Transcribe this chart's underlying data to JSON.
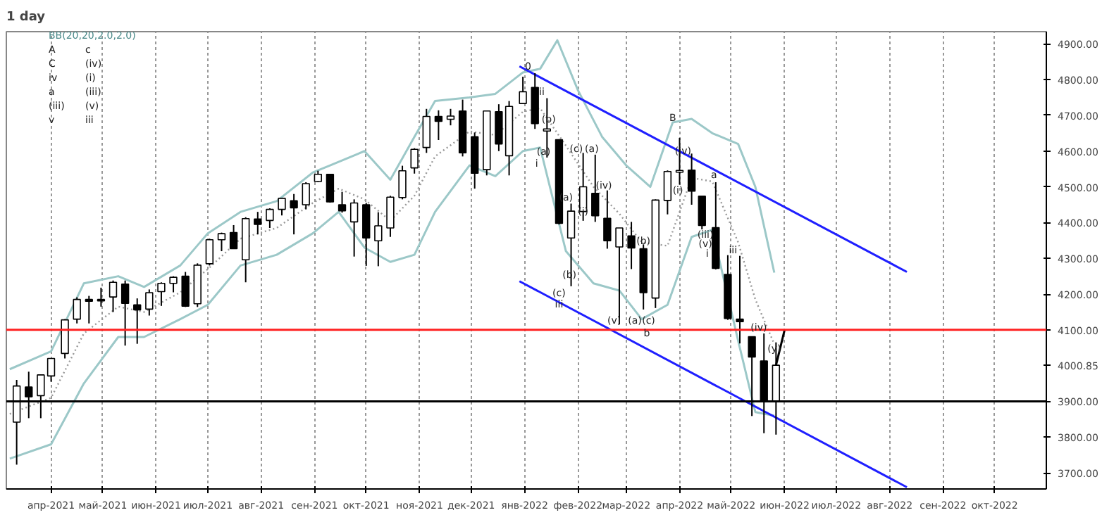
{
  "chart_data": {
    "type": "candlestick",
    "title": "1 day",
    "x": [
      "2021-03-12",
      "2021-03-19",
      "2021-03-26",
      "2021-04-01",
      "2021-04-09",
      "2021-04-16",
      "2021-04-23",
      "2021-04-30",
      "2021-05-07",
      "2021-05-14",
      "2021-05-21",
      "2021-05-28",
      "2021-06-04",
      "2021-06-11",
      "2021-06-18",
      "2021-06-25",
      "2021-07-02",
      "2021-07-09",
      "2021-07-16",
      "2021-07-23",
      "2021-07-30",
      "2021-08-06",
      "2021-08-13",
      "2021-08-20",
      "2021-08-27",
      "2021-09-03",
      "2021-09-10",
      "2021-09-17",
      "2021-09-24",
      "2021-10-01",
      "2021-10-08",
      "2021-10-15",
      "2021-10-22",
      "2021-10-29",
      "2021-11-05",
      "2021-11-12",
      "2021-11-19",
      "2021-11-26",
      "2021-12-03",
      "2021-12-10",
      "2021-12-17",
      "2021-12-23",
      "2021-12-31",
      "2022-01-07",
      "2022-01-14",
      "2022-01-21",
      "2022-01-28",
      "2022-02-04",
      "2022-02-11",
      "2022-02-18",
      "2022-02-25",
      "2022-03-04",
      "2022-03-11",
      "2022-03-18",
      "2022-03-25",
      "2022-04-01",
      "2022-04-08",
      "2022-04-14",
      "2022-04-22",
      "2022-04-29",
      "2022-05-06",
      "2022-05-13",
      "2022-05-20",
      "2022-05-27"
    ],
    "ohlc": [
      [
        3842,
        3960,
        3723,
        3943
      ],
      [
        3940,
        3983,
        3853,
        3913
      ],
      [
        3916,
        3975,
        3853,
        3974
      ],
      [
        3971,
        4020,
        3955,
        4020
      ],
      [
        4034,
        4130,
        4020,
        4128
      ],
      [
        4130,
        4191,
        4118,
        4185
      ],
      [
        4185,
        4195,
        4118,
        4180
      ],
      [
        4185,
        4218,
        4165,
        4181
      ],
      [
        4192,
        4238,
        4150,
        4233
      ],
      [
        4228,
        4238,
        4056,
        4174
      ],
      [
        4170,
        4188,
        4061,
        4156
      ],
      [
        4158,
        4213,
        4140,
        4204
      ],
      [
        4207,
        4233,
        4167,
        4230
      ],
      [
        4230,
        4250,
        4205,
        4247
      ],
      [
        4250,
        4262,
        4164,
        4166
      ],
      [
        4173,
        4286,
        4164,
        4281
      ],
      [
        4285,
        4355,
        4280,
        4352
      ],
      [
        4352,
        4372,
        4320,
        4369
      ],
      [
        4372,
        4393,
        4327,
        4327
      ],
      [
        4296,
        4415,
        4233,
        4411
      ],
      [
        4410,
        4430,
        4367,
        4395
      ],
      [
        4406,
        4440,
        4385,
        4437
      ],
      [
        4437,
        4469,
        4420,
        4468
      ],
      [
        4461,
        4480,
        4367,
        4441
      ],
      [
        4450,
        4513,
        4437,
        4509
      ],
      [
        4515,
        4545,
        4513,
        4535
      ],
      [
        4535,
        4536,
        4456,
        4458
      ],
      [
        4450,
        4486,
        4428,
        4433
      ],
      [
        4402,
        4465,
        4305,
        4455
      ],
      [
        4450,
        4455,
        4279,
        4357
      ],
      [
        4349,
        4429,
        4278,
        4391
      ],
      [
        4385,
        4475,
        4360,
        4471
      ],
      [
        4470,
        4559,
        4465,
        4545
      ],
      [
        4553,
        4608,
        4537,
        4605
      ],
      [
        4610,
        4718,
        4595,
        4697
      ],
      [
        4697,
        4714,
        4631,
        4683
      ],
      [
        4689,
        4718,
        4672,
        4698
      ],
      [
        4712,
        4744,
        4585,
        4595
      ],
      [
        4640,
        4652,
        4495,
        4538
      ],
      [
        4548,
        4713,
        4532,
        4712
      ],
      [
        4710,
        4731,
        4600,
        4620
      ],
      [
        4587,
        4740,
        4532,
        4725
      ],
      [
        4733,
        4808,
        4733,
        4766
      ],
      [
        4778,
        4818,
        4662,
        4677
      ],
      [
        4656,
        4748,
        4582,
        4662
      ],
      [
        4632,
        4632,
        4395,
        4398
      ],
      [
        4357,
        4453,
        4222,
        4432
      ],
      [
        4431,
        4595,
        4405,
        4500
      ],
      [
        4482,
        4590,
        4402,
        4419
      ],
      [
        4412,
        4490,
        4327,
        4349
      ],
      [
        4332,
        4385,
        4115,
        4385
      ],
      [
        4363,
        4402,
        4270,
        4329
      ],
      [
        4327,
        4339,
        4157,
        4204
      ],
      [
        4189,
        4465,
        4161,
        4463
      ],
      [
        4462,
        4546,
        4423,
        4543
      ],
      [
        4541,
        4637,
        4506,
        4546
      ],
      [
        4547,
        4593,
        4450,
        4488
      ],
      [
        4474,
        4475,
        4381,
        4392
      ],
      [
        4386,
        4513,
        4269,
        4272
      ],
      [
        4255,
        4309,
        4128,
        4132
      ],
      [
        4130,
        4307,
        4062,
        4123
      ],
      [
        4081,
        4081,
        3859,
        4024
      ],
      [
        4013,
        4090,
        3811,
        3901
      ],
      [
        3901,
        4065,
        3807,
        4001
      ]
    ],
    "series": [
      {
        "type": "line",
        "color": "#9cc8c8",
        "x": [
          "2021-03-08",
          "2021-04-01",
          "2021-04-20",
          "2021-05-10",
          "2021-05-25",
          "2021-06-15",
          "2021-07-01",
          "2021-07-20",
          "2021-08-10",
          "2021-08-31",
          "2021-09-10",
          "2021-09-30",
          "2021-10-15",
          "2021-10-29",
          "2021-11-10",
          "2021-11-30",
          "2021-12-15",
          "2021-12-31",
          "2022-01-10",
          "2022-01-20",
          "2022-02-01",
          "2022-02-15",
          "2022-03-01",
          "2022-03-15",
          "2022-03-28",
          "2022-04-08",
          "2022-04-20",
          "2022-05-05",
          "2022-05-15",
          "2022-05-26"
        ],
        "values": [
          3990,
          4040,
          4230,
          4250,
          4220,
          4280,
          4370,
          4430,
          4460,
          4540,
          4560,
          4600,
          4520,
          4640,
          4740,
          4750,
          4760,
          4820,
          4830,
          4910,
          4770,
          4640,
          4560,
          4500,
          4680,
          4690,
          4650,
          4620,
          4500,
          4260
        ]
      },
      {
        "type": "line",
        "color": "#9cc8c8",
        "x": [
          "2021-03-08",
          "2021-04-01",
          "2021-04-20",
          "2021-05-10",
          "2021-05-25",
          "2021-06-15",
          "2021-07-01",
          "2021-07-20",
          "2021-08-10",
          "2021-08-31",
          "2021-09-15",
          "2021-09-30",
          "2021-10-15",
          "2021-10-29",
          "2021-11-10",
          "2021-11-30",
          "2021-12-15",
          "2021-12-31",
          "2022-01-10",
          "2022-01-25",
          "2022-02-10",
          "2022-02-25",
          "2022-03-10",
          "2022-03-25",
          "2022-04-08",
          "2022-04-20",
          "2022-05-05",
          "2022-05-15",
          "2022-05-26"
        ],
        "values": [
          3740,
          3780,
          3950,
          4080,
          4080,
          4130,
          4170,
          4280,
          4310,
          4370,
          4430,
          4330,
          4290,
          4310,
          4430,
          4560,
          4530,
          4600,
          4610,
          4320,
          4230,
          4210,
          4130,
          4170,
          4360,
          4380,
          4070,
          3870,
          3860
        ]
      },
      {
        "type": "line",
        "color": "#999999",
        "line_style": "dotted",
        "x": [
          "2021-03-08",
          "2021-04-01",
          "2021-04-20",
          "2021-05-10",
          "2021-05-25",
          "2021-06-15",
          "2021-07-01",
          "2021-07-20",
          "2021-08-10",
          "2021-08-31",
          "2021-09-15",
          "2021-09-30",
          "2021-10-15",
          "2021-10-29",
          "2021-11-10",
          "2021-11-30",
          "2021-12-15",
          "2021-12-31",
          "2022-01-10",
          "2022-01-25",
          "2022-02-10",
          "2022-02-25",
          "2022-03-10",
          "2022-03-25",
          "2022-04-08",
          "2022-04-20",
          "2022-05-05",
          "2022-05-15",
          "2022-05-26"
        ],
        "values": [
          3865,
          3910,
          4090,
          4165,
          4150,
          4205,
          4270,
          4355,
          4385,
          4455,
          4495,
          4465,
          4405,
          4475,
          4585,
          4655,
          4645,
          4710,
          4720,
          4615,
          4500,
          4425,
          4345,
          4335,
          4525,
          4515,
          4345,
          4185,
          4060
        ]
      },
      {
        "type": "line",
        "color": "#1f1fff",
        "x": [
          "2021-12-29",
          "2022-08-11"
        ],
        "values": [
          4837,
          4262
        ]
      },
      {
        "type": "line",
        "color": "#1f1fff",
        "x": [
          "2021-12-29",
          "2022-08-11"
        ],
        "values": [
          4236,
          3660
        ]
      },
      {
        "type": "line",
        "color": "#000000",
        "x": [
          "2022-05-27",
          "2022-06-01"
        ],
        "values": [
          4001,
          4100
        ]
      }
    ],
    "ref_lines": [
      {
        "axis": "y",
        "value": 4100,
        "color": "#ff2020"
      },
      {
        "axis": "y",
        "value": 3900,
        "color": "#000000"
      }
    ],
    "xlim": [
      "2021-03-06",
      "2022-10-31"
    ],
    "ylim": [
      3655,
      4934
    ],
    "xticks": [
      {
        "value": "2021-04-01",
        "label": "апр-2021"
      },
      {
        "value": "2021-05-01",
        "label": "май-2021"
      },
      {
        "value": "2021-06-01",
        "label": "июн-2021"
      },
      {
        "value": "2021-07-01",
        "label": "июл-2021"
      },
      {
        "value": "2021-08-01",
        "label": "авг-2021"
      },
      {
        "value": "2021-09-01",
        "label": "сен-2021"
      },
      {
        "value": "2021-10-01",
        "label": "окт-2021"
      },
      {
        "value": "2021-11-01",
        "label": "ноя-2021"
      },
      {
        "value": "2021-12-01",
        "label": "дек-2021"
      },
      {
        "value": "2022-01-01",
        "label": "янв-2022"
      },
      {
        "value": "2022-02-01",
        "label": "фев-2022"
      },
      {
        "value": "2022-03-01",
        "label": "мар-2022"
      },
      {
        "value": "2022-04-01",
        "label": "апр-2022"
      },
      {
        "value": "2022-05-01",
        "label": "май-2022"
      },
      {
        "value": "2022-06-01",
        "label": "июн-2022"
      },
      {
        "value": "2022-07-01",
        "label": "июл-2022"
      },
      {
        "value": "2022-08-01",
        "label": "авг-2022"
      },
      {
        "value": "2022-09-01",
        "label": "сен-2022"
      },
      {
        "value": "2022-10-01",
        "label": "окт-2022"
      }
    ],
    "yticks": [
      {
        "value": 3700,
        "label": "3700.00"
      },
      {
        "value": 3800,
        "label": "3800.00"
      },
      {
        "value": 3900,
        "label": "3900.00"
      },
      {
        "value": 4000.85,
        "label": "4000.85"
      },
      {
        "value": 4100,
        "label": "4100.00"
      },
      {
        "value": 4200,
        "label": "4200.00"
      },
      {
        "value": 4300,
        "label": "4300.00"
      },
      {
        "value": 4400,
        "label": "4400.00"
      },
      {
        "value": 4500,
        "label": "4500.00"
      },
      {
        "value": 4600,
        "label": "4600.00"
      },
      {
        "value": 4700,
        "label": "4700.00"
      },
      {
        "value": 4800,
        "label": "4800.00"
      },
      {
        "value": 4900,
        "label": "4900.00"
      }
    ],
    "grid": "x",
    "annotations": [
      "BB(20,20,2.0,2.0)",
      {
        "text": "0",
        "x": "2022-01-03",
        "y": 4840
      },
      {
        "text": "B",
        "x": "2022-03-28",
        "y": 4692
      },
      "A",
      "C",
      {
        "text": "ii",
        "x": "2022-01-11",
        "y": 4765
      },
      {
        "text": "(b)",
        "x": "2022-01-15",
        "y": 4688
      },
      {
        "text": "(a)",
        "x": "2022-01-12",
        "y": 4597
      },
      {
        "text": "i",
        "x": "2022-01-08",
        "y": 4565
      },
      "iv",
      {
        "text": "(c)",
        "x": "2022-01-31",
        "y": 4605
      },
      {
        "text": "(a)",
        "x": "2022-02-09",
        "y": 4605
      },
      {
        "text": "(a)",
        "x": "2022-01-25",
        "y": 4470
      },
      {
        "text": "(i)",
        "x": "2022-02-04",
        "y": 4430
      },
      {
        "text": "(iv)",
        "x": "2022-02-16",
        "y": 4503
      },
      "a",
      "(iii)",
      {
        "text": "(b)",
        "x": "2022-01-27",
        "y": 4254
      },
      {
        "text": "(c)",
        "x": "2022-01-21",
        "y": 4203
      },
      {
        "text": "iii",
        "x": "2022-01-21",
        "y": 4170
      },
      {
        "text": "(b)",
        "x": "2022-03-11",
        "y": 4347
      },
      {
        "text": "(a)",
        "x": "2022-03-06",
        "y": 4125
      },
      {
        "text": "(c)",
        "x": "2022-03-14",
        "y": 4125
      },
      {
        "text": "b",
        "x": "2022-03-13",
        "y": 4090
      },
      {
        "text": "(v)",
        "x": "2022-02-22",
        "y": 4125
      },
      "v",
      "c",
      {
        "text": "(iv)",
        "x": "2022-04-03",
        "y": 4600
      },
      {
        "text": "(i)",
        "x": "2022-03-31",
        "y": 4489
      },
      {
        "text": "a",
        "x": "2022-04-21",
        "y": 4533
      },
      "(iv)",
      {
        "text": "(iii)",
        "x": "2022-04-16",
        "y": 4366
      },
      {
        "text": "(v)",
        "x": "2022-04-16",
        "y": 4340
      },
      {
        "text": "i",
        "x": "2022-04-17",
        "y": 4312
      },
      {
        "text": "iii",
        "x": "2022-05-02",
        "y": 4323
      },
      "(i)",
      {
        "text": "(iv)",
        "x": "2022-05-17",
        "y": 4105
      },
      {
        "text": "(y)",
        "x": "2022-05-26",
        "y": 4047
      },
      "(iii)",
      "(v)",
      "iii"
    ]
  }
}
